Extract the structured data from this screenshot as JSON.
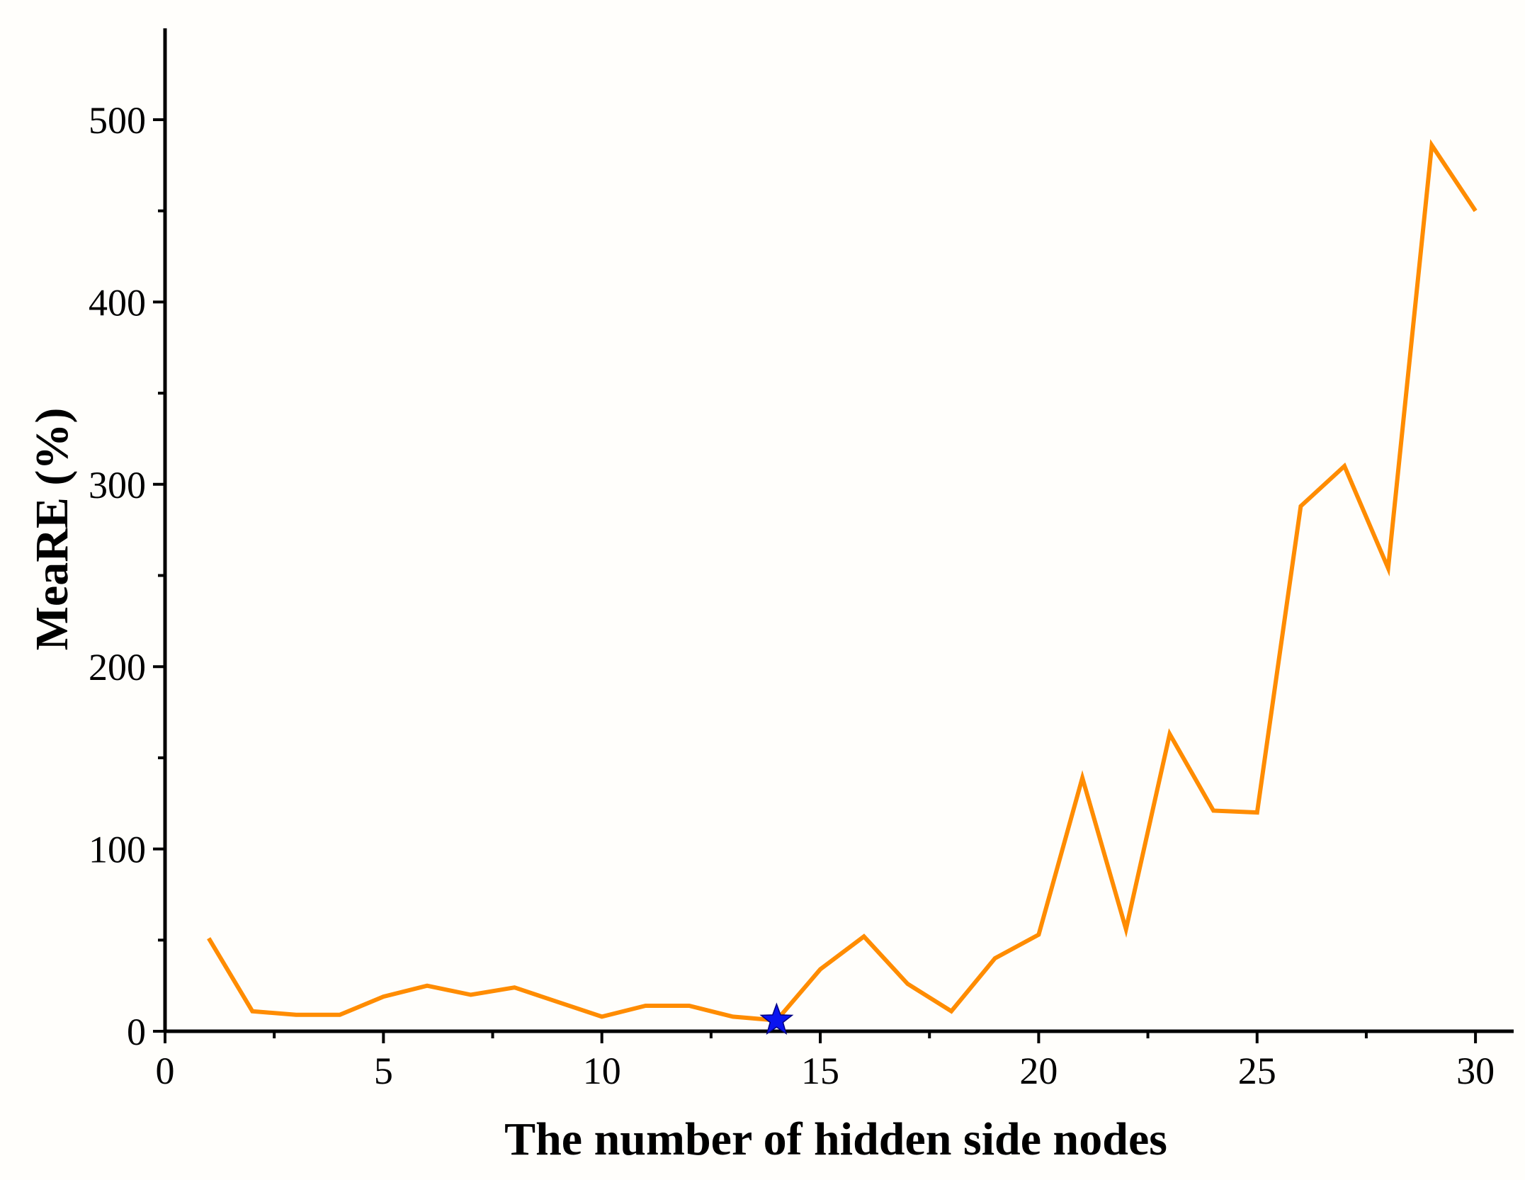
{
  "chart_data": {
    "type": "line",
    "title": "",
    "xlabel": "The number of hidden side nodes",
    "ylabel": "MeaRE (%)",
    "xlim": [
      0,
      31
    ],
    "ylim": [
      0,
      550
    ],
    "xticks": [
      0,
      5,
      10,
      15,
      20,
      25,
      30
    ],
    "xtick_labels": [
      "0",
      "5",
      "10",
      "15",
      "20",
      "25",
      "30"
    ],
    "yticks": [
      0,
      100,
      200,
      300,
      400,
      500
    ],
    "ytick_labels": [
      "0",
      "100",
      "200",
      "300",
      "400",
      "500"
    ],
    "grid": false,
    "legend": "none",
    "series": [
      {
        "color": "#ff8c00",
        "x": [
          1,
          2,
          3,
          4,
          5,
          6,
          7,
          8,
          9,
          10,
          11,
          12,
          13,
          14,
          15,
          16,
          17,
          18,
          19,
          20,
          21,
          22,
          23,
          24,
          25,
          26,
          27,
          28,
          29,
          30
        ],
        "y": [
          51,
          11,
          9,
          9,
          19,
          25,
          20,
          24,
          16,
          8,
          14,
          14,
          8,
          6,
          34,
          52,
          26,
          11,
          40,
          53,
          139,
          56,
          163,
          121,
          120,
          288,
          310,
          254,
          486,
          450
        ]
      }
    ],
    "highlight": {
      "marker": "star",
      "color": "#0a14f0",
      "x": 14,
      "y": 6
    }
  }
}
